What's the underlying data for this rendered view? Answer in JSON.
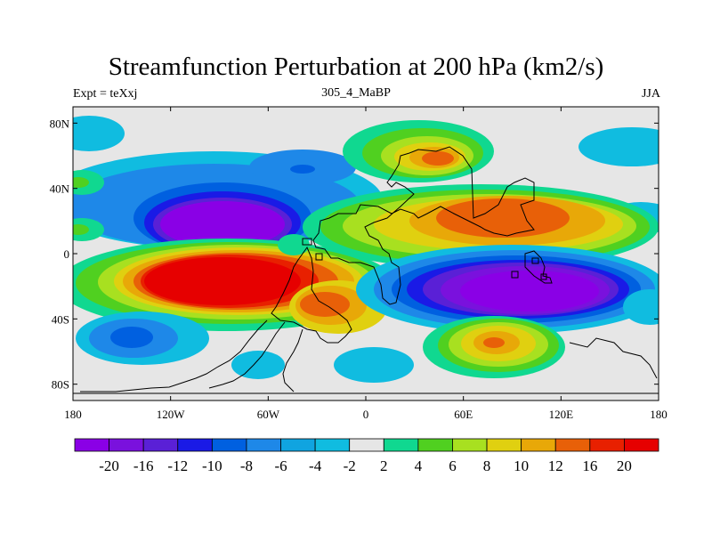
{
  "chart_data": {
    "type": "contour_map",
    "title": "Streamfunction Perturbation at 200 hPa (km2/s)",
    "left_string": "Expt = teXxj",
    "center_string": "305_4_MaBP",
    "right_string": "JJA",
    "x_ticks": [
      "180",
      "120W",
      "60W",
      "0",
      "60E",
      "120E",
      "180"
    ],
    "y_ticks": [
      "80N",
      "40N",
      "0",
      "40S",
      "80S"
    ],
    "xlim": [
      -180,
      180
    ],
    "ylim": [
      -90,
      90
    ],
    "colorbar": {
      "labels": [
        "-20",
        "-16",
        "-12",
        "-10",
        "-8",
        "-6",
        "-4",
        "-2",
        "2",
        "4",
        "6",
        "8",
        "10",
        "12",
        "16",
        "20"
      ],
      "colors": [
        "#8a00e6",
        "#7a11dd",
        "#5a20d6",
        "#1a1ae6",
        "#0060e0",
        "#1e88e8",
        "#10a4e0",
        "#10bce0",
        "#e6e6e6",
        "#10d890",
        "#50d020",
        "#a8e020",
        "#e0d010",
        "#e8a808",
        "#e86008",
        "#e82000",
        "#e60000"
      ]
    },
    "features": [
      {
        "name": "east-pacific-low",
        "lon": -85,
        "lat": 22,
        "value": -20
      },
      {
        "name": "south-pacific-high",
        "lon": -80,
        "lat": -18,
        "value": 20
      },
      {
        "name": "indian-ocean-low",
        "lon": 80,
        "lat": -22,
        "value": -20
      },
      {
        "name": "asian-high",
        "lon": 80,
        "lat": 25,
        "value": 14
      },
      {
        "name": "siberian-high",
        "lon": 55,
        "lat": 60,
        "value": 14
      },
      {
        "name": "southern-ocean-high",
        "lon": 75,
        "lat": -55,
        "value": 12
      },
      {
        "name": "equatorial-atlantic-high",
        "lon": -20,
        "lat": -30,
        "value": 10
      }
    ]
  }
}
